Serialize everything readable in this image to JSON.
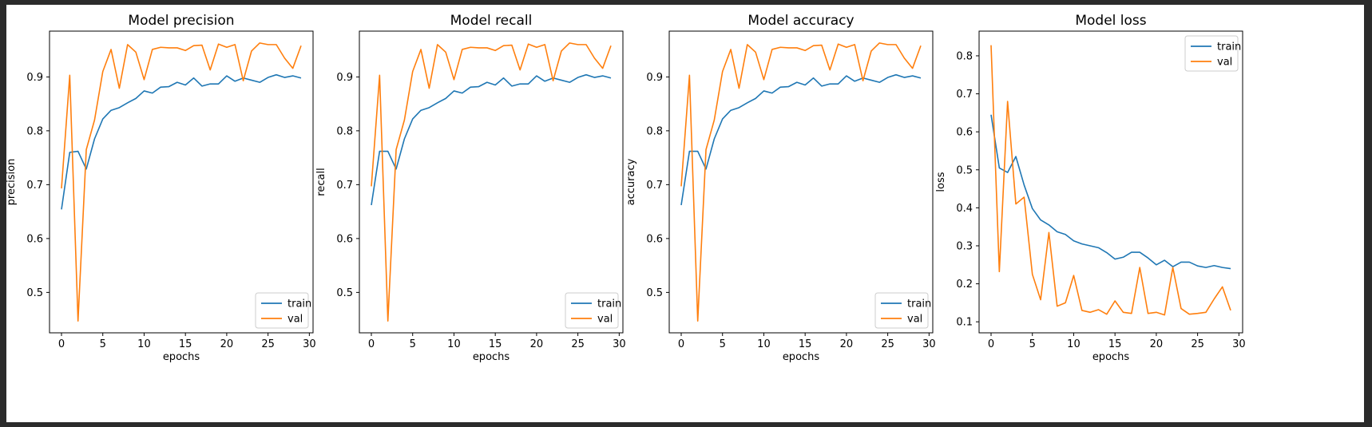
{
  "colors": {
    "train": "#1f77b4",
    "val": "#ff7f0e",
    "frame": "#000000",
    "background": "#ffffff"
  },
  "chart_data": [
    {
      "type": "line",
      "title": "Model precision",
      "xlabel": "epochs",
      "ylabel": "precision",
      "xlim": [
        -1.45,
        30.45
      ],
      "ylim": [
        0.425,
        0.985
      ],
      "xticks": [
        0,
        5,
        10,
        15,
        20,
        25,
        30
      ],
      "yticks": [
        0.5,
        0.6,
        0.7,
        0.8,
        0.9
      ],
      "legend": "lower-right",
      "x": [
        0,
        1,
        2,
        3,
        4,
        5,
        6,
        7,
        8,
        9,
        10,
        11,
        12,
        13,
        14,
        15,
        16,
        17,
        18,
        19,
        20,
        21,
        22,
        23,
        24,
        25,
        26,
        27,
        28,
        29
      ],
      "series": [
        {
          "name": "train",
          "values": [
            0.654,
            0.76,
            0.762,
            0.729,
            0.785,
            0.822,
            0.838,
            0.843,
            0.852,
            0.86,
            0.874,
            0.87,
            0.881,
            0.882,
            0.89,
            0.885,
            0.898,
            0.883,
            0.887,
            0.887,
            0.902,
            0.892,
            0.898,
            0.894,
            0.89,
            0.899,
            0.904,
            0.899,
            0.902,
            0.898
          ]
        },
        {
          "name": "val",
          "values": [
            0.693,
            0.903,
            0.447,
            0.765,
            0.82,
            0.91,
            0.951,
            0.879,
            0.96,
            0.946,
            0.895,
            0.951,
            0.955,
            0.954,
            0.954,
            0.949,
            0.958,
            0.959,
            0.913,
            0.961,
            0.955,
            0.96,
            0.893,
            0.948,
            0.963,
            0.96,
            0.96,
            0.935,
            0.916,
            0.958
          ]
        }
      ]
    },
    {
      "type": "line",
      "title": "Model recall",
      "xlabel": "epochs",
      "ylabel": "recall",
      "xlim": [
        -1.45,
        30.45
      ],
      "ylim": [
        0.425,
        0.985
      ],
      "xticks": [
        0,
        5,
        10,
        15,
        20,
        25,
        30
      ],
      "yticks": [
        0.5,
        0.6,
        0.7,
        0.8,
        0.9
      ],
      "legend": "lower-right",
      "x": [
        0,
        1,
        2,
        3,
        4,
        5,
        6,
        7,
        8,
        9,
        10,
        11,
        12,
        13,
        14,
        15,
        16,
        17,
        18,
        19,
        20,
        21,
        22,
        23,
        24,
        25,
        26,
        27,
        28,
        29
      ],
      "series": [
        {
          "name": "train",
          "values": [
            0.662,
            0.762,
            0.762,
            0.729,
            0.785,
            0.822,
            0.838,
            0.843,
            0.852,
            0.86,
            0.874,
            0.87,
            0.881,
            0.882,
            0.89,
            0.885,
            0.898,
            0.883,
            0.887,
            0.887,
            0.902,
            0.892,
            0.898,
            0.894,
            0.89,
            0.899,
            0.904,
            0.899,
            0.902,
            0.898
          ]
        },
        {
          "name": "val",
          "values": [
            0.697,
            0.903,
            0.447,
            0.765,
            0.82,
            0.91,
            0.951,
            0.879,
            0.96,
            0.946,
            0.895,
            0.951,
            0.955,
            0.954,
            0.954,
            0.949,
            0.958,
            0.959,
            0.913,
            0.961,
            0.955,
            0.96,
            0.893,
            0.948,
            0.963,
            0.96,
            0.96,
            0.935,
            0.916,
            0.958
          ]
        }
      ]
    },
    {
      "type": "line",
      "title": "Model accuracy",
      "xlabel": "epochs",
      "ylabel": "accuracy",
      "xlim": [
        -1.45,
        30.45
      ],
      "ylim": [
        0.425,
        0.985
      ],
      "xticks": [
        0,
        5,
        10,
        15,
        20,
        25,
        30
      ],
      "yticks": [
        0.5,
        0.6,
        0.7,
        0.8,
        0.9
      ],
      "legend": "lower-right",
      "x": [
        0,
        1,
        2,
        3,
        4,
        5,
        6,
        7,
        8,
        9,
        10,
        11,
        12,
        13,
        14,
        15,
        16,
        17,
        18,
        19,
        20,
        21,
        22,
        23,
        24,
        25,
        26,
        27,
        28,
        29
      ],
      "series": [
        {
          "name": "train",
          "values": [
            0.662,
            0.762,
            0.762,
            0.729,
            0.785,
            0.822,
            0.838,
            0.843,
            0.852,
            0.86,
            0.874,
            0.87,
            0.881,
            0.882,
            0.89,
            0.885,
            0.898,
            0.883,
            0.887,
            0.887,
            0.902,
            0.892,
            0.898,
            0.894,
            0.89,
            0.899,
            0.904,
            0.899,
            0.902,
            0.898
          ]
        },
        {
          "name": "val",
          "values": [
            0.697,
            0.903,
            0.447,
            0.765,
            0.82,
            0.91,
            0.951,
            0.879,
            0.96,
            0.946,
            0.895,
            0.951,
            0.955,
            0.954,
            0.954,
            0.949,
            0.958,
            0.959,
            0.913,
            0.961,
            0.955,
            0.96,
            0.893,
            0.948,
            0.963,
            0.96,
            0.96,
            0.935,
            0.916,
            0.958
          ]
        }
      ]
    },
    {
      "type": "line",
      "title": "Model loss",
      "xlabel": "epochs",
      "ylabel": "loss",
      "xlim": [
        -1.45,
        30.45
      ],
      "ylim": [
        0.071,
        0.865
      ],
      "xticks": [
        0,
        5,
        10,
        15,
        20,
        25,
        30
      ],
      "yticks": [
        0.1,
        0.2,
        0.3,
        0.4,
        0.5,
        0.6,
        0.7,
        0.8
      ],
      "legend": "upper-right",
      "x": [
        0,
        1,
        2,
        3,
        4,
        5,
        6,
        7,
        8,
        9,
        10,
        11,
        12,
        13,
        14,
        15,
        16,
        17,
        18,
        19,
        20,
        21,
        22,
        23,
        24,
        25,
        26,
        27,
        28,
        29
      ],
      "series": [
        {
          "name": "train",
          "values": [
            0.645,
            0.505,
            0.493,
            0.535,
            0.46,
            0.398,
            0.368,
            0.355,
            0.337,
            0.33,
            0.313,
            0.305,
            0.3,
            0.295,
            0.282,
            0.265,
            0.27,
            0.283,
            0.283,
            0.268,
            0.25,
            0.262,
            0.245,
            0.257,
            0.257,
            0.247,
            0.243,
            0.248,
            0.243,
            0.24
          ]
        },
        {
          "name": "val",
          "values": [
            0.828,
            0.232,
            0.68,
            0.41,
            0.428,
            0.225,
            0.158,
            0.335,
            0.141,
            0.15,
            0.222,
            0.13,
            0.125,
            0.132,
            0.12,
            0.155,
            0.125,
            0.122,
            0.243,
            0.122,
            0.125,
            0.118,
            0.243,
            0.135,
            0.12,
            0.122,
            0.125,
            0.16,
            0.192,
            0.13
          ]
        }
      ]
    }
  ]
}
